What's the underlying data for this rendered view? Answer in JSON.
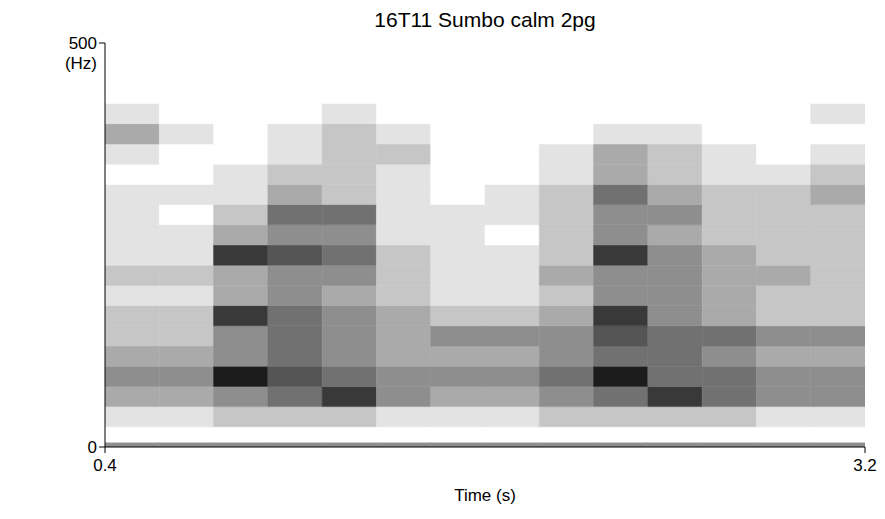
{
  "chart_data": {
    "type": "heatmap",
    "title": "16T11 Sumbo calm 2pg",
    "x_label": "Time (s)",
    "y_label": "(Hz)",
    "xlim": [
      0.4,
      3.2
    ],
    "xticks": [
      0.4,
      3.2
    ],
    "ylim": [
      0,
      500
    ],
    "yticks": [
      0,
      500
    ],
    "x_edges": [
      0.4,
      0.6,
      0.8,
      1.0,
      1.2,
      1.4,
      1.6,
      1.8,
      2.0,
      2.2,
      2.4,
      2.6,
      2.8,
      3.0,
      3.2
    ],
    "y_edges": [
      0,
      6,
      25,
      50,
      75,
      100,
      125,
      150,
      175,
      200,
      225,
      250,
      275,
      300,
      325,
      350,
      375,
      400,
      425,
      450,
      475,
      500
    ],
    "cells": [
      [
        4,
        0,
        1,
        3,
        4,
        3,
        2,
        2,
        1,
        2,
        1,
        1,
        1,
        1,
        0,
        1,
        3,
        1,
        0,
        0,
        0
      ],
      [
        4,
        0,
        1,
        3,
        4,
        3,
        2,
        2,
        1,
        2,
        1,
        1,
        0,
        1,
        0,
        0,
        1,
        0,
        0,
        0,
        0
      ],
      [
        4,
        0,
        2,
        4,
        8,
        4,
        4,
        7,
        3,
        3,
        7,
        3,
        2,
        1,
        1,
        0,
        0,
        0,
        0,
        0,
        0
      ],
      [
        4,
        0,
        2,
        5,
        6,
        5,
        5,
        5,
        4,
        4,
        6,
        4,
        5,
        3,
        2,
        1,
        1,
        0,
        0,
        0,
        0
      ],
      [
        4,
        0,
        2,
        7,
        5,
        4,
        4,
        4,
        3,
        4,
        5,
        4,
        5,
        2,
        2,
        2,
        2,
        1,
        0,
        0,
        0
      ],
      [
        4,
        0,
        1,
        4,
        4,
        3,
        3,
        3,
        2,
        2,
        2,
        1,
        1,
        1,
        1,
        2,
        1,
        0,
        0,
        0,
        0
      ],
      [
        4,
        0,
        1,
        3,
        4,
        3,
        4,
        2,
        1,
        1,
        1,
        1,
        1,
        0,
        0,
        0,
        0,
        0,
        0,
        0,
        0
      ],
      [
        4,
        0,
        1,
        3,
        4,
        3,
        4,
        2,
        1,
        1,
        1,
        0,
        1,
        1,
        0,
        0,
        0,
        0,
        0,
        0,
        0
      ],
      [
        4,
        0,
        2,
        4,
        5,
        4,
        4,
        3,
        2,
        3,
        2,
        2,
        2,
        2,
        1,
        1,
        0,
        0,
        0,
        0,
        0
      ],
      [
        4,
        0,
        2,
        5,
        8,
        5,
        6,
        7,
        4,
        4,
        7,
        4,
        4,
        5,
        3,
        3,
        1,
        0,
        0,
        0,
        0
      ],
      [
        4,
        0,
        2,
        7,
        5,
        5,
        5,
        4,
        4,
        4,
        4,
        3,
        4,
        3,
        2,
        2,
        1,
        0,
        0,
        0,
        0
      ],
      [
        4,
        0,
        2,
        5,
        5,
        4,
        5,
        3,
        3,
        3,
        3,
        2,
        2,
        2,
        1,
        1,
        0,
        0,
        0,
        0,
        0
      ],
      [
        4,
        0,
        1,
        4,
        4,
        3,
        4,
        2,
        2,
        3,
        2,
        2,
        2,
        2,
        1,
        0,
        0,
        0,
        0,
        0,
        0
      ],
      [
        4,
        0,
        1,
        4,
        4,
        3,
        4,
        2,
        2,
        2,
        2,
        2,
        2,
        3,
        2,
        1,
        0,
        1,
        0,
        0,
        0
      ]
    ],
    "zlim": [
      0,
      9
    ],
    "color": "#000000"
  }
}
